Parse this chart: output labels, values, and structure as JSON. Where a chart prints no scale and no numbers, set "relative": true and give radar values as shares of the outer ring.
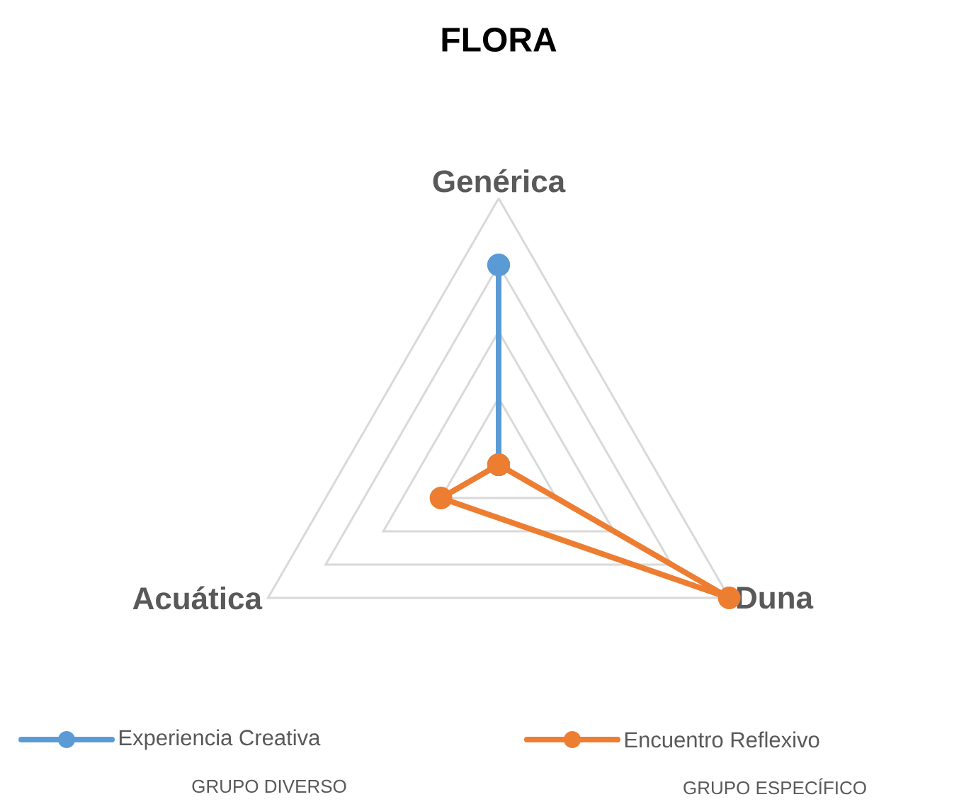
{
  "chart_data": {
    "type": "radar",
    "title": "FLORA",
    "categories": [
      "Genérica",
      "Duna",
      "Acuática"
    ],
    "relative": true,
    "marker": "circle",
    "legend": "bottom",
    "series": [
      {
        "name": "Experiencia Creativa",
        "color": "#5b9bd5",
        "values": [
          0.75,
          0,
          0
        ]
      },
      {
        "name": "Encuentro Reflexivo",
        "color": "#ed7d31",
        "values": [
          0,
          1,
          0.25
        ]
      }
    ],
    "annotations": [
      "GRUPO DIVERSO",
      "GRUPO ESPECÍFICO"
    ]
  }
}
